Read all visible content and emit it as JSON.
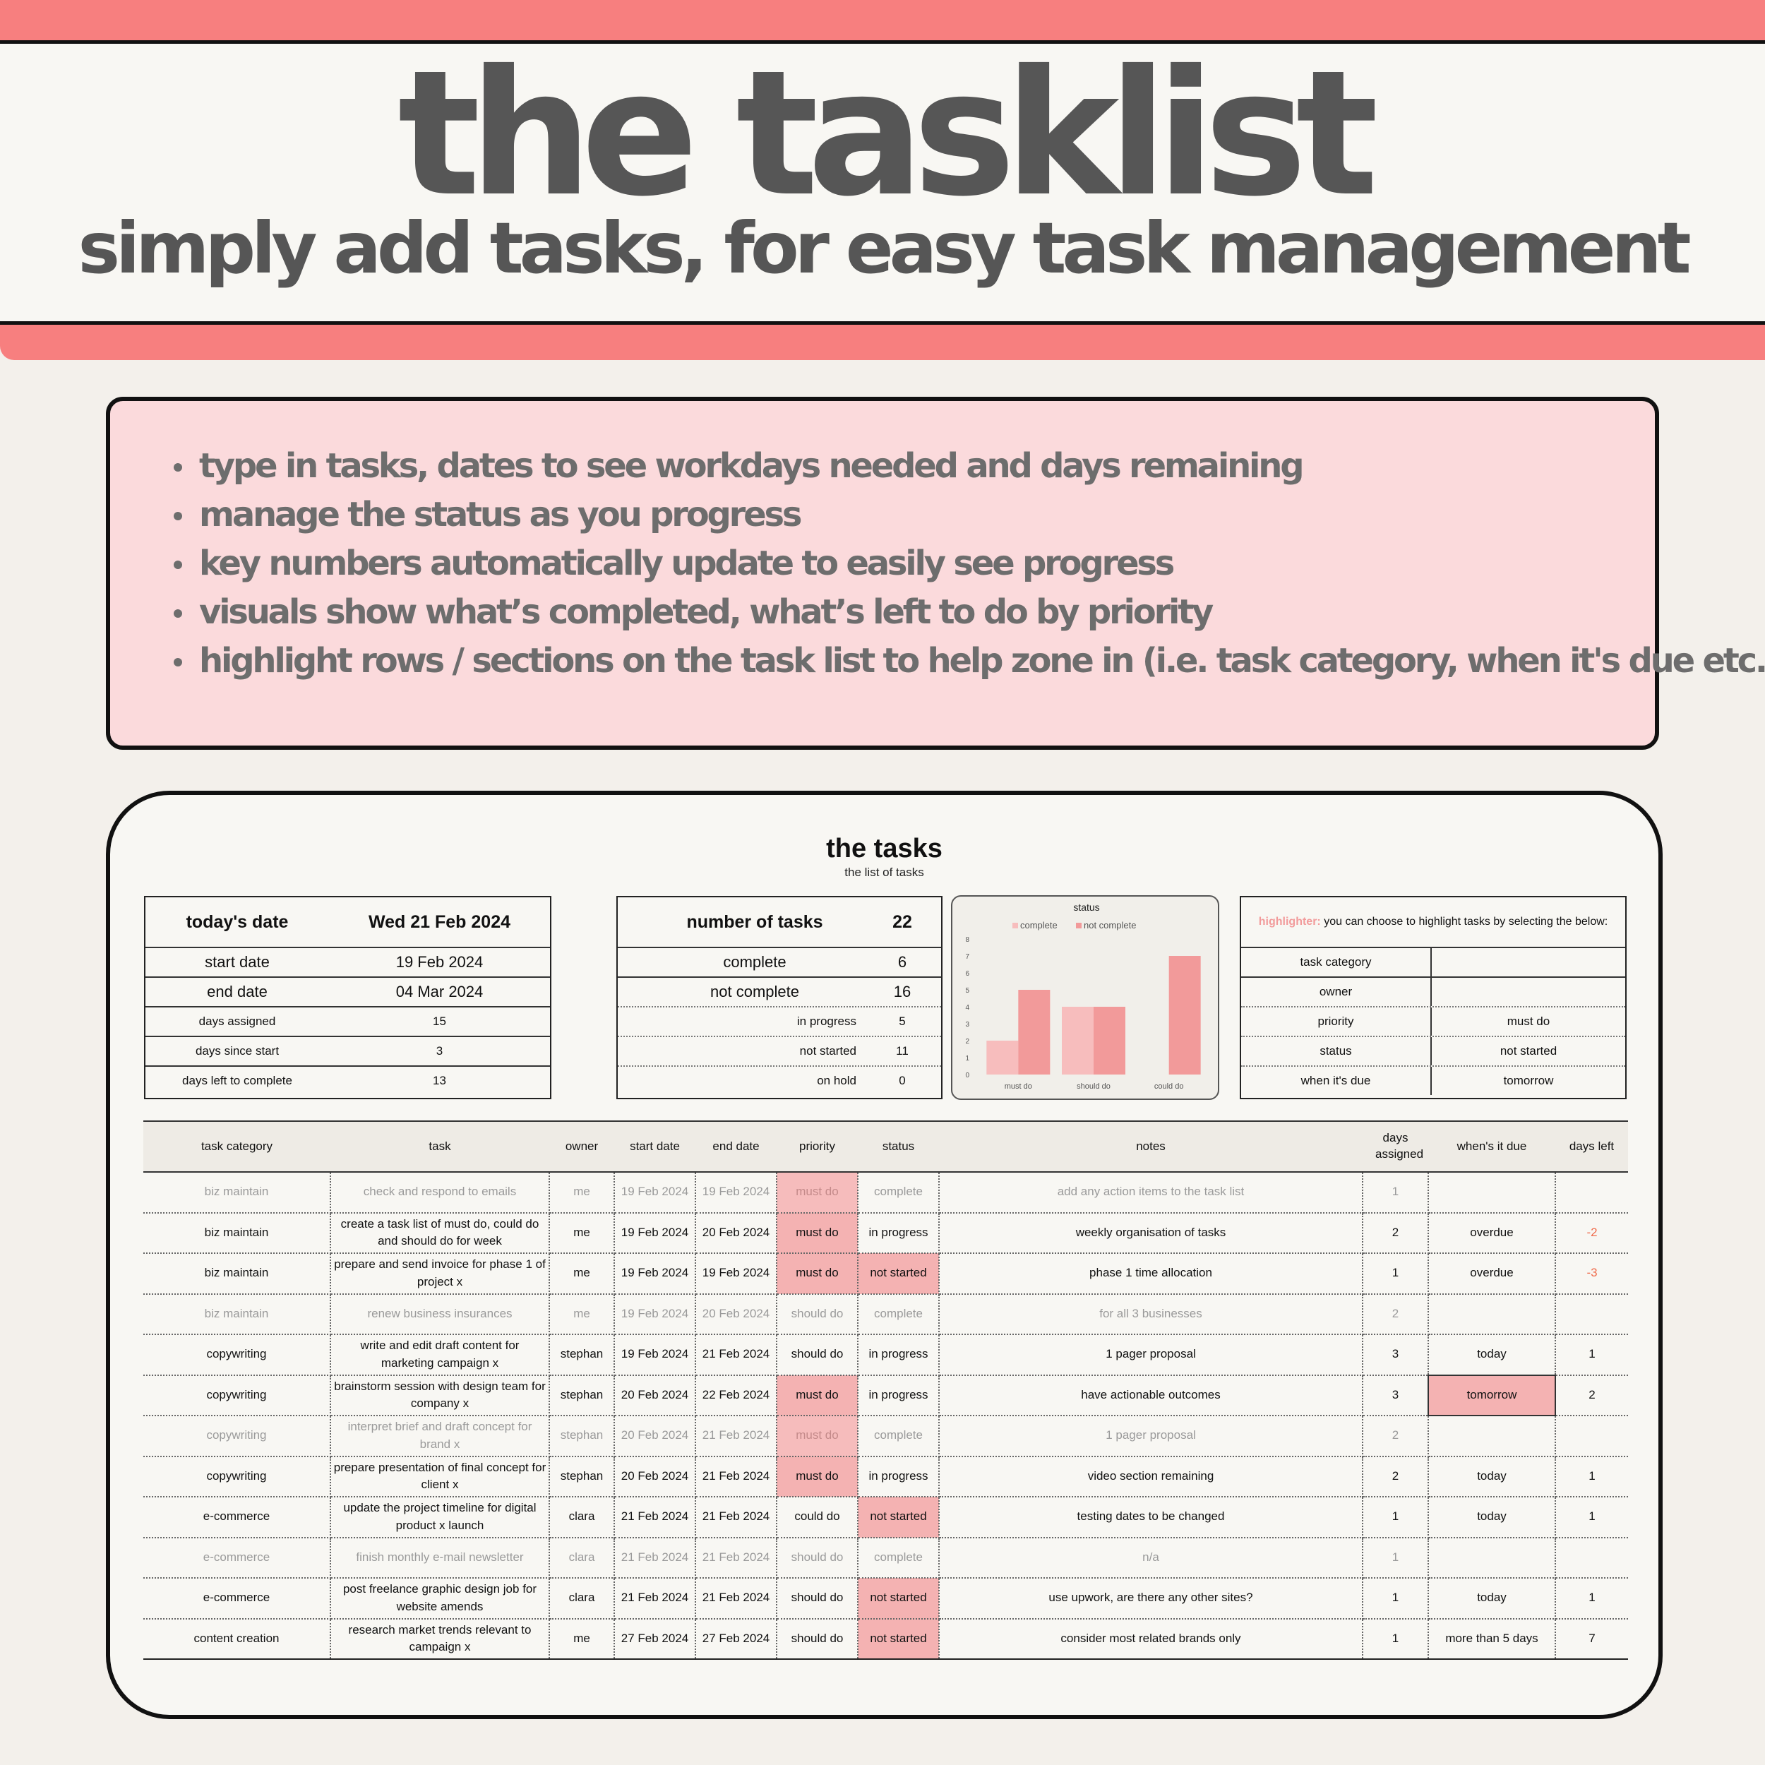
{
  "hero": {
    "title": "the tasklist",
    "subtitle": "simply add tasks, for easy task management"
  },
  "features": [
    "type in tasks, dates to see workdays needed and days remaining",
    "manage the status as you progress",
    "key numbers automatically update to easily see progress",
    "visuals show what’s completed, what’s left to do by priority",
    "highlight rows / sections on the task list to help zone in (i.e. task category, when it's due etc.)"
  ],
  "sheet": {
    "title": "the tasks",
    "subtitle": "the list of tasks"
  },
  "dates": {
    "today_label": "today's date",
    "today_value": "Wed 21 Feb 2024",
    "start_label": "start date",
    "start_value": "19 Feb 2024",
    "end_label": "end date",
    "end_value": "04 Mar 2024",
    "assigned_label": "days assigned",
    "assigned_value": "15",
    "since_label": "days since start",
    "since_value": "3",
    "left_label": "days left to complete",
    "left_value": "13"
  },
  "counts": {
    "total_label": "number of tasks",
    "total_value": "22",
    "complete_label": "complete",
    "complete_value": "6",
    "notcomplete_label": "not complete",
    "notcomplete_value": "16",
    "inprogress_label": "in progress",
    "inprogress_value": "5",
    "notstarted_label": "not started",
    "notstarted_value": "11",
    "onhold_label": "on hold",
    "onhold_value": "0"
  },
  "chart_data": {
    "type": "bar",
    "title": "status",
    "categories": [
      "must do",
      "should do",
      "could do"
    ],
    "series": [
      {
        "name": "complete",
        "values": [
          2,
          4,
          0
        ],
        "color": "#f7bdbd"
      },
      {
        "name": "not complete",
        "values": [
          5,
          4,
          7
        ],
        "color": "#f29a9a"
      }
    ],
    "ylim": [
      0,
      8
    ],
    "yticks": [
      "0",
      "1",
      "2",
      "3",
      "4",
      "5",
      "6",
      "7",
      "8"
    ],
    "legend": "top",
    "grid": false
  },
  "highlighter": {
    "key": "highlighter:",
    "text": " you can choose to highlight tasks by selecting the below:",
    "rows": [
      {
        "label": "task category",
        "value": ""
      },
      {
        "label": "owner",
        "value": ""
      },
      {
        "label": "priority",
        "value": "must do"
      },
      {
        "label": "status",
        "value": "not started"
      },
      {
        "label": "when it's due",
        "value": "tomorrow"
      }
    ]
  },
  "table": {
    "headers": [
      "task category",
      "task",
      "owner",
      "start date",
      "end date",
      "priority",
      "status",
      "notes",
      "days assigned",
      "when's it due",
      "days left"
    ],
    "rows": [
      {
        "category": "biz maintain",
        "task": "check and respond to emails",
        "owner": "me",
        "start": "19 Feb 2024",
        "end": "19 Feb 2024",
        "priority": "must do",
        "status": "complete",
        "notes": "add any action items to the task list",
        "days": "1",
        "due": "",
        "left": ""
      },
      {
        "category": "biz maintain",
        "task": "create a task list of must do, could do and should do for week",
        "owner": "me",
        "start": "19 Feb 2024",
        "end": "20 Feb 2024",
        "priority": "must do",
        "status": "in progress",
        "notes": "weekly organisation of tasks",
        "days": "2",
        "due": "overdue",
        "left": "-2"
      },
      {
        "category": "biz maintain",
        "task": "prepare and send invoice for phase 1 of project x",
        "owner": "me",
        "start": "19 Feb 2024",
        "end": "19 Feb 2024",
        "priority": "must do",
        "status": "not started",
        "notes": "phase 1 time allocation",
        "days": "1",
        "due": "overdue",
        "left": "-3"
      },
      {
        "category": "biz maintain",
        "task": "renew business insurances",
        "owner": "me",
        "start": "19 Feb 2024",
        "end": "20 Feb 2024",
        "priority": "should do",
        "status": "complete",
        "notes": "for all 3 businesses",
        "days": "2",
        "due": "",
        "left": ""
      },
      {
        "category": "copywriting",
        "task": "write and edit draft content for marketing campaign x",
        "owner": "stephan",
        "start": "19 Feb 2024",
        "end": "21 Feb 2024",
        "priority": "should do",
        "status": "in progress",
        "notes": "1 pager proposal",
        "days": "3",
        "due": "today",
        "left": "1"
      },
      {
        "category": "copywriting",
        "task": "brainstorm session with design team for company x",
        "owner": "stephan",
        "start": "20 Feb 2024",
        "end": "22 Feb 2024",
        "priority": "must do",
        "status": "in progress",
        "notes": "have actionable outcomes",
        "days": "3",
        "due": "tomorrow",
        "left": "2"
      },
      {
        "category": "copywriting",
        "task": "interpret brief and draft concept for brand x",
        "owner": "stephan",
        "start": "20 Feb 2024",
        "end": "21 Feb 2024",
        "priority": "must do",
        "status": "complete",
        "notes": "1 pager proposal",
        "days": "2",
        "due": "",
        "left": ""
      },
      {
        "category": "copywriting",
        "task": "prepare presentation of final concept for client x",
        "owner": "stephan",
        "start": "20 Feb 2024",
        "end": "21 Feb 2024",
        "priority": "must do",
        "status": "in progress",
        "notes": "video section remaining",
        "days": "2",
        "due": "today",
        "left": "1"
      },
      {
        "category": "e-commerce",
        "task": "update the project timeline for digital product x launch",
        "owner": "clara",
        "start": "21 Feb 2024",
        "end": "21 Feb 2024",
        "priority": "could do",
        "status": "not started",
        "notes": "testing dates to be changed",
        "days": "1",
        "due": "today",
        "left": "1"
      },
      {
        "category": "e-commerce",
        "task": "finish monthly e-mail newsletter",
        "owner": "clara",
        "start": "21 Feb 2024",
        "end": "21 Feb 2024",
        "priority": "should do",
        "status": "complete",
        "notes": "n/a",
        "days": "1",
        "due": "",
        "left": ""
      },
      {
        "category": "e-commerce",
        "task": "post freelance graphic design job for website amends",
        "owner": "clara",
        "start": "21 Feb 2024",
        "end": "21 Feb 2024",
        "priority": "should do",
        "status": "not started",
        "notes": "use upwork, are there any other sites?",
        "days": "1",
        "due": "today",
        "left": "1"
      },
      {
        "category": "content creation",
        "task": "research market trends relevant to campaign x",
        "owner": "me",
        "start": "27 Feb 2024",
        "end": "27 Feb 2024",
        "priority": "should do",
        "status": "not started",
        "notes": "consider most related brands only",
        "days": "1",
        "due": "more than 5 days",
        "left": "7"
      }
    ]
  }
}
